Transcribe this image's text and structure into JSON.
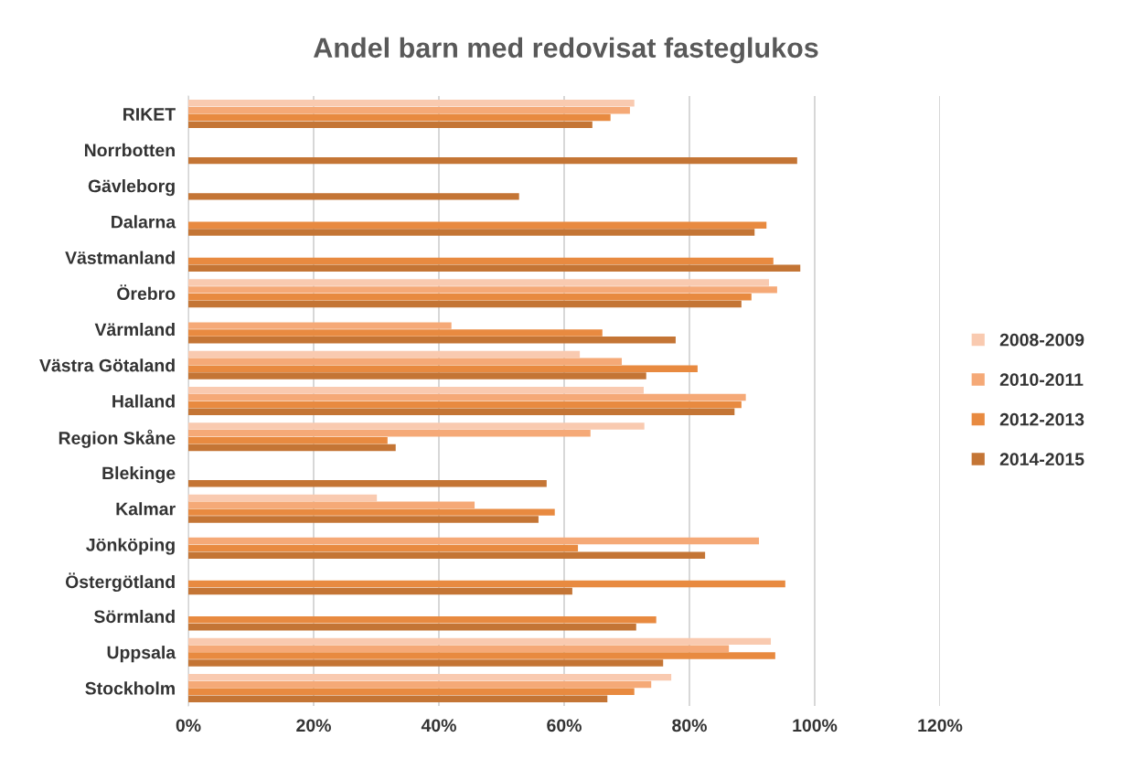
{
  "chart_data": {
    "type": "bar",
    "orientation": "horizontal",
    "title": "Andel barn med redovisat fasteglukos",
    "categories": [
      "RIKET",
      "Norrbotten",
      "Gävleborg",
      "Dalarna",
      "Västmanland",
      "Örebro",
      "Värmland",
      "Västra Götaland",
      "Halland",
      "Region Skåne",
      "Blekinge",
      "Kalmar",
      "Jönköping",
      "Östergötland",
      "Sörmland",
      "Uppsala",
      "Stockholm"
    ],
    "series": [
      {
        "name": "2008-2009",
        "color": "#f9cab0",
        "values": [
          71.2,
          null,
          null,
          null,
          null,
          92.7,
          null,
          62.5,
          72.7,
          72.8,
          null,
          30.1,
          null,
          null,
          null,
          93.0,
          77.1
        ]
      },
      {
        "name": "2010-2011",
        "color": "#f5a977",
        "values": [
          70.5,
          null,
          null,
          null,
          null,
          94.0,
          42.0,
          69.2,
          89.0,
          64.2,
          null,
          45.7,
          91.1,
          null,
          null,
          86.3,
          73.9
        ]
      },
      {
        "name": "2012-2013",
        "color": "#e88a40",
        "values": [
          67.4,
          null,
          null,
          92.3,
          93.4,
          89.9,
          66.1,
          81.3,
          88.3,
          31.8,
          null,
          58.5,
          62.2,
          95.3,
          74.7,
          93.7,
          71.2
        ]
      },
      {
        "name": "2014-2015",
        "color": "#c47535",
        "values": [
          64.5,
          97.2,
          52.8,
          90.4,
          97.7,
          88.3,
          77.8,
          73.1,
          87.2,
          33.1,
          57.2,
          55.9,
          82.5,
          61.3,
          71.5,
          75.8,
          66.9
        ]
      }
    ],
    "xlim": [
      0,
      120
    ],
    "xticks": [
      {
        "value": 0,
        "label": "0%"
      },
      {
        "value": 20,
        "label": "20%"
      },
      {
        "value": 40,
        "label": "40%"
      },
      {
        "value": 60,
        "label": "60%"
      },
      {
        "value": 80,
        "label": "80%"
      },
      {
        "value": 100,
        "label": "100%"
      },
      {
        "value": 120,
        "label": "120%"
      }
    ],
    "grid": "x",
    "legend": "right"
  }
}
